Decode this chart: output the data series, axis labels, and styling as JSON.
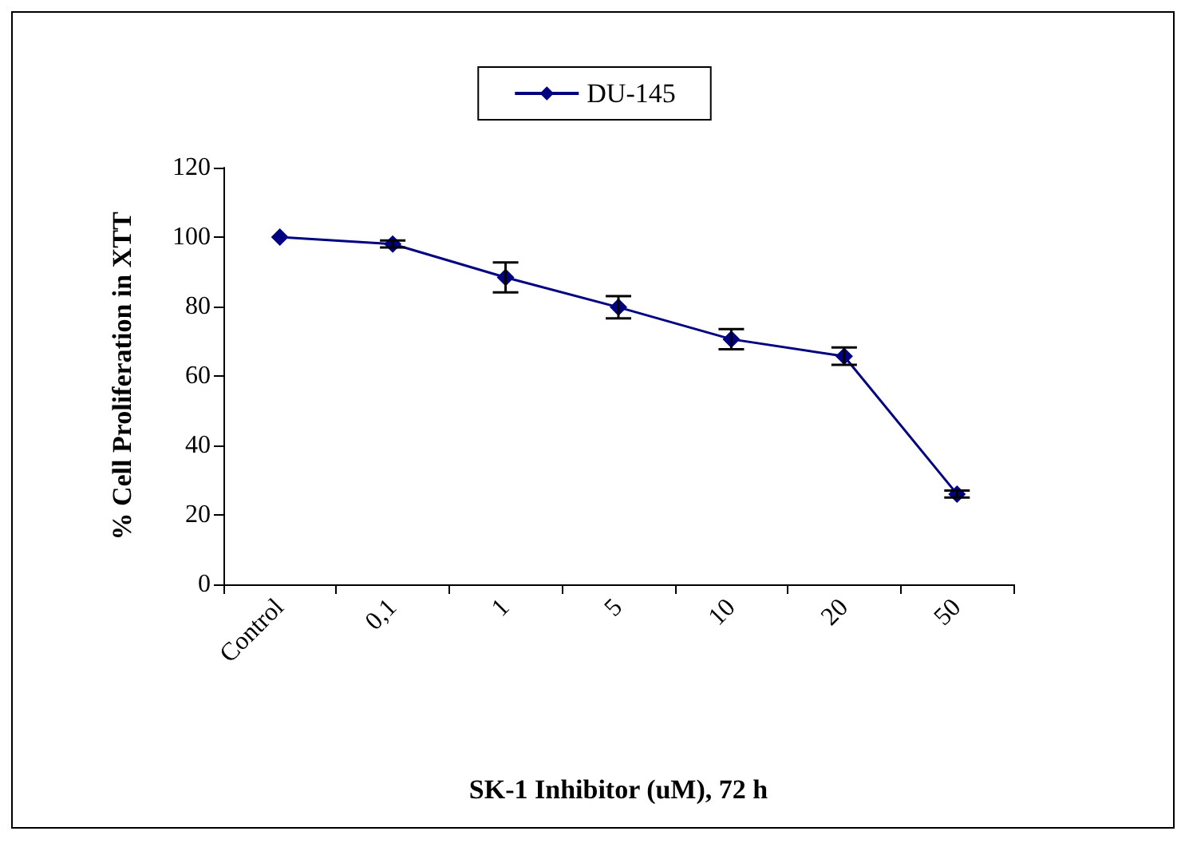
{
  "chart_data": {
    "type": "line",
    "xlabel": "SK-1 Inhibitor (uM), 72 h",
    "ylabel": "% Cell Proliferation in XTT",
    "categories": [
      "Control",
      "0,1",
      "1",
      "5",
      "10",
      "20",
      "50"
    ],
    "series": [
      {
        "name": "DU-145",
        "color": "#000080",
        "values": [
          100,
          98,
          88.4,
          79.8,
          70.6,
          65.7,
          26
        ],
        "errors": [
          null,
          1,
          4.3,
          3.2,
          2.9,
          2.5,
          1
        ]
      }
    ],
    "ylim": [
      0,
      120
    ],
    "yticks": [
      0,
      20,
      40,
      60,
      80,
      100,
      120
    ],
    "grid": false,
    "legend": "top",
    "marker": "diamond",
    "line_style": "solid"
  }
}
